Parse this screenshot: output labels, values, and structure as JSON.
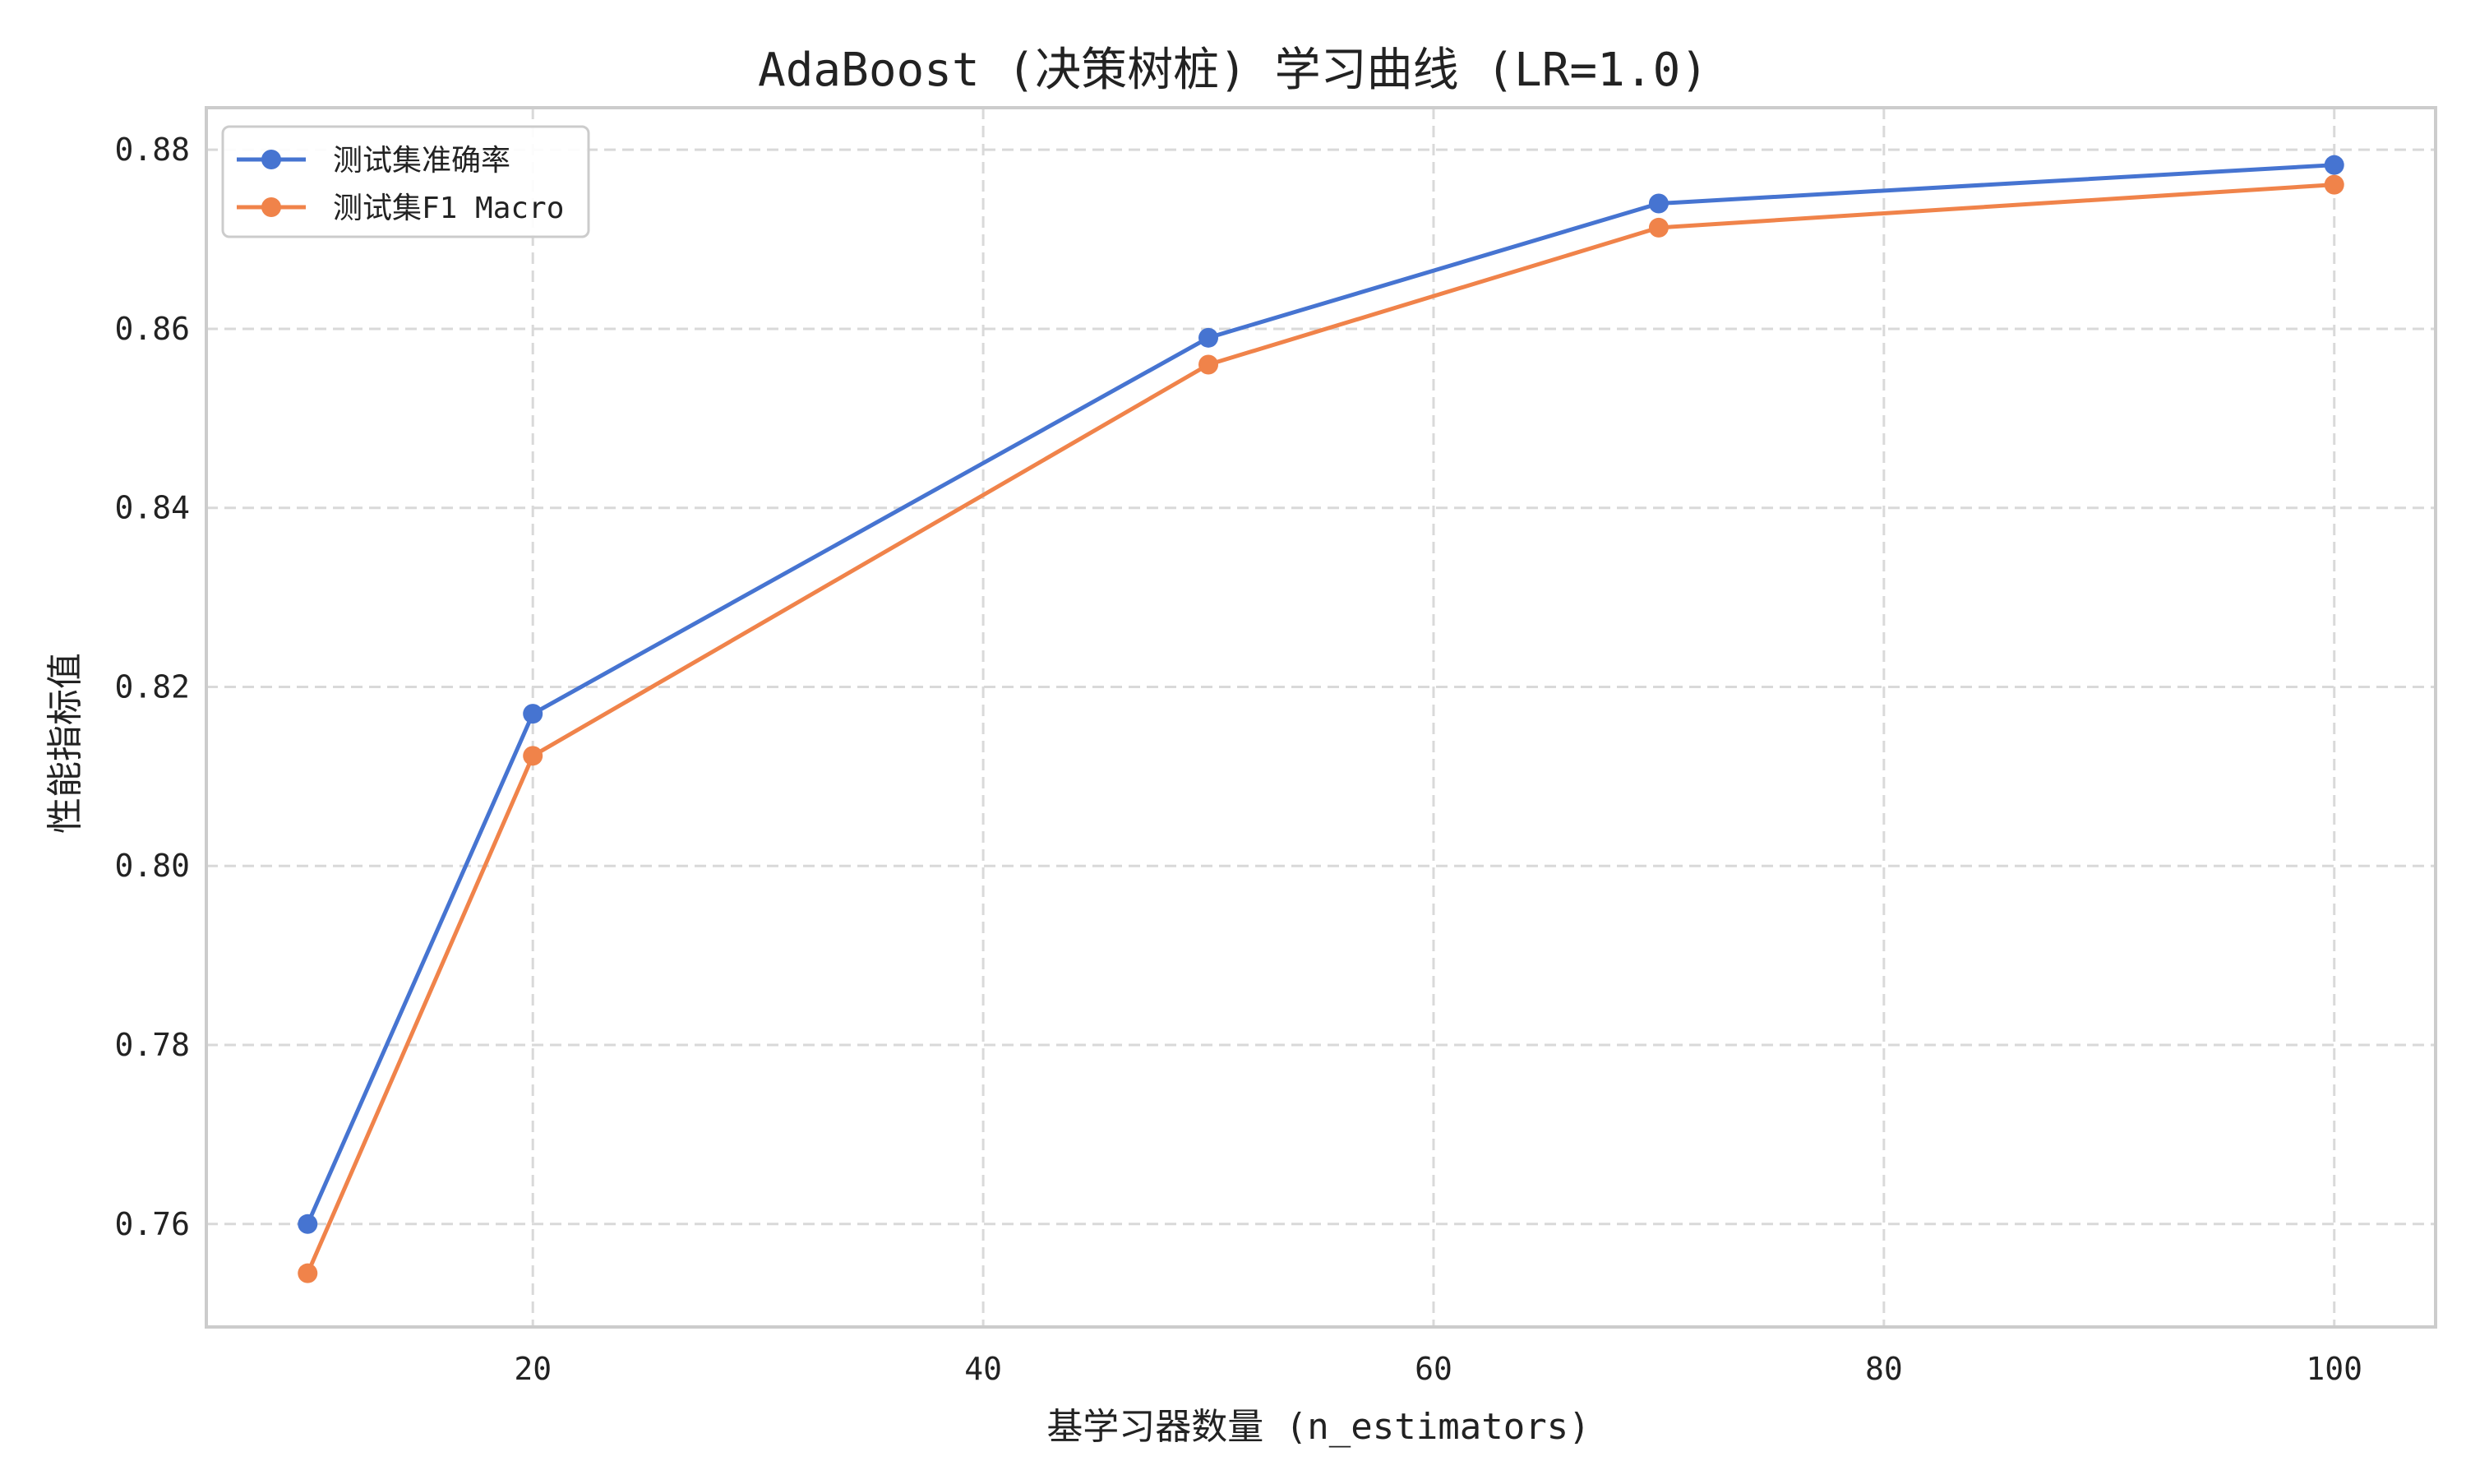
{
  "chart_data": {
    "type": "line",
    "title": "AdaBoost (决策树桩) 学习曲线 (LR=1.0)",
    "xlabel": "基学习器数量 (n_estimators)",
    "ylabel": "性能指标值",
    "x": [
      10,
      20,
      50,
      70,
      100
    ],
    "xlim": [
      5.5,
      104.5
    ],
    "ylim": [
      0.7485,
      0.8847
    ],
    "xticks": [
      20,
      40,
      60,
      80,
      100
    ],
    "xtick_labels": [
      "20",
      "40",
      "60",
      "80",
      "100"
    ],
    "yticks": [
      0.76,
      0.78,
      0.8,
      0.82,
      0.84,
      0.86,
      0.88
    ],
    "ytick_labels": [
      "0.76",
      "0.78",
      "0.80",
      "0.82",
      "0.84",
      "0.86",
      "0.88"
    ],
    "grid": true,
    "legend_position": "upper-left",
    "series": [
      {
        "name": "测试集准确率",
        "color": "#4674d1",
        "values": [
          0.76,
          0.817,
          0.859,
          0.874,
          0.8783
        ]
      },
      {
        "name": "测试集F1 Macro",
        "color": "#f0834a",
        "values": [
          0.7545,
          0.8123,
          0.856,
          0.8713,
          0.8761
        ]
      }
    ]
  }
}
